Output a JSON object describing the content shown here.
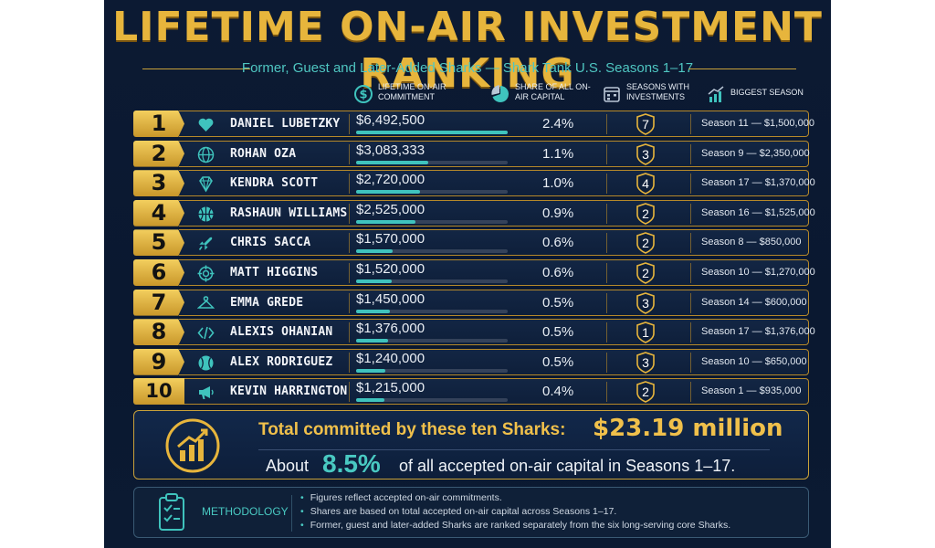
{
  "title": "LIFETIME ON-AIR INVESTMENT RANKING",
  "subtitle": "Former, Guest and Later-Added Sharks — Shark Tank U.S. Seasons 1–17",
  "columns": {
    "commitment": "LIFETIME ON-AIR COMMITMENT",
    "share": "SHARE OF ALL ON-AIR CAPITAL",
    "seasons": "SEASONS WITH INVESTMENTS",
    "biggest": "BIGGEST SEASON"
  },
  "chart_data": {
    "type": "bar",
    "title": "LIFETIME ON-AIR INVESTMENT RANKING",
    "max_value": 6492500,
    "rows": [
      {
        "rank": "1",
        "name": "DANIEL LUBETZKY",
        "value": 6492500,
        "value_label": "$6,492,500",
        "share": "2.4%",
        "seasons": "7",
        "biggest": "Season 11 — $1,500,000",
        "icon": "heart-icon"
      },
      {
        "rank": "2",
        "name": "ROHAN OZA",
        "value": 3083333,
        "value_label": "$3,083,333",
        "share": "1.1%",
        "seasons": "3",
        "biggest": "Season 9 — $2,350,000",
        "icon": "globe-icon"
      },
      {
        "rank": "3",
        "name": "KENDRA SCOTT",
        "value": 2720000,
        "value_label": "$2,720,000",
        "share": "1.0%",
        "seasons": "4",
        "biggest": "Season 17 — $1,370,000",
        "icon": "diamond-icon"
      },
      {
        "rank": "4",
        "name": "RASHAUN WILLIAMS",
        "value": 2525000,
        "value_label": "$2,525,000",
        "share": "0.9%",
        "seasons": "2",
        "biggest": "Season 16 — $1,525,000",
        "icon": "basketball-icon"
      },
      {
        "rank": "5",
        "name": "CHRIS SACCA",
        "value": 1570000,
        "value_label": "$1,570,000",
        "share": "0.6%",
        "seasons": "2",
        "biggest": "Season 8 — $850,000",
        "icon": "rocket-icon"
      },
      {
        "rank": "6",
        "name": "MATT HIGGINS",
        "value": 1520000,
        "value_label": "$1,520,000",
        "share": "0.6%",
        "seasons": "2",
        "biggest": "Season 10 — $1,270,000",
        "icon": "target-icon"
      },
      {
        "rank": "7",
        "name": "EMMA GREDE",
        "value": 1450000,
        "value_label": "$1,450,000",
        "share": "0.5%",
        "seasons": "3",
        "biggest": "Season 14 — $600,000",
        "icon": "hanger-icon"
      },
      {
        "rank": "8",
        "name": "ALEXIS OHANIAN",
        "value": 1376000,
        "value_label": "$1,376,000",
        "share": "0.5%",
        "seasons": "1",
        "biggest": "Season 17 — $1,376,000",
        "icon": "code-icon"
      },
      {
        "rank": "9",
        "name": "ALEX RODRIGUEZ",
        "value": 1240000,
        "value_label": "$1,240,000",
        "share": "0.5%",
        "seasons": "3",
        "biggest": "Season 10 — $650,000",
        "icon": "baseball-icon"
      },
      {
        "rank": "10",
        "name": "KEVIN HARRINGTON",
        "value": 1215000,
        "value_label": "$1,215,000",
        "share": "0.4%",
        "seasons": "2",
        "biggest": "Season 1 — $935,000",
        "icon": "megaphone-icon"
      }
    ]
  },
  "summary": {
    "label": "Total committed by these ten Sharks:",
    "amount": "$23.19 million",
    "about": "About",
    "percent": "8.5%",
    "tail": "of all accepted on-air capital in Seasons 1–17."
  },
  "methodology": {
    "title": "METHODOLOGY",
    "notes": [
      "Figures reflect accepted on-air commitments.",
      "Shares are based on total accepted on-air capital across Seasons 1–17.",
      "Former, guest and later-added Sharks are ranked separately from the six long-serving core Sharks."
    ]
  },
  "colors": {
    "gold": "#e7b53c",
    "teal": "#3fc3bd",
    "navy": "#0c1a33"
  }
}
